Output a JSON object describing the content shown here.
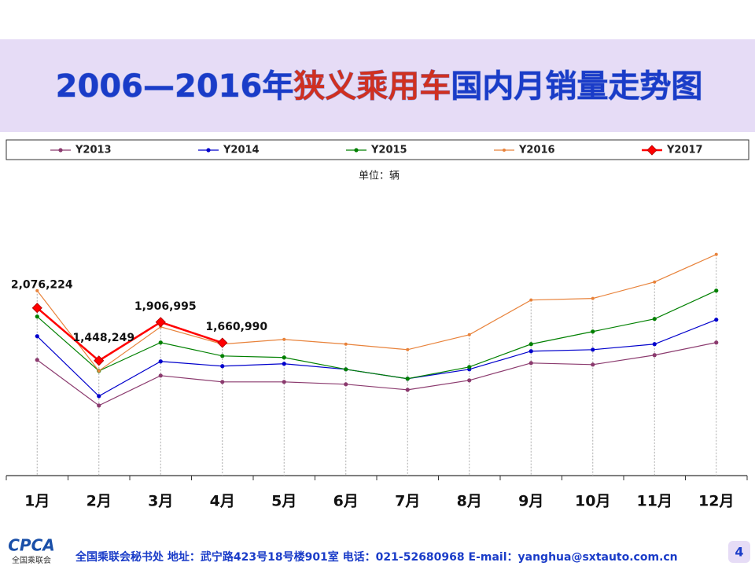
{
  "chart_data": {
    "type": "line",
    "title": [
      "2006—2016年",
      "狭义乘用车",
      "国内月销量走势图"
    ],
    "unit": "单位：辆",
    "categories": [
      "1月",
      "2月",
      "3月",
      "4月",
      "5月",
      "6月",
      "7月",
      "8月",
      "9月",
      "10月",
      "11月",
      "12月"
    ],
    "ylim": [
      0,
      3000000
    ],
    "series": [
      {
        "name": "Y2013",
        "color": "#8b3a6e",
        "values": [
          1457000,
          914000,
          1270000,
          1195000,
          1195000,
          1167000,
          1101000,
          1214000,
          1420000,
          1401000,
          1514000,
          1664000
        ]
      },
      {
        "name": "Y2014",
        "color": "#0000cc",
        "values": [
          1739000,
          1026000,
          1439000,
          1383000,
          1411000,
          1345000,
          1233000,
          1345000,
          1561000,
          1579000,
          1645000,
          1936000
        ]
      },
      {
        "name": "Y2015",
        "color": "#008000",
        "values": [
          1973000,
          1326000,
          1664000,
          1504000,
          1486000,
          1345000,
          1233000,
          1373000,
          1645000,
          1795000,
          1945000,
          2282000
        ]
      },
      {
        "name": "Y2016",
        "color": "#e8823a",
        "values": [
          2282000,
          1326000,
          1851000,
          1645000,
          1701000,
          1645000,
          1579000,
          1757000,
          2170000,
          2189000,
          2385000,
          2713000
        ]
      },
      {
        "name": "Y2017",
        "color": "#ff0000",
        "values": [
          2076224,
          1448249,
          1906995,
          1660990,
          null,
          null,
          null,
          null,
          null,
          null,
          null,
          null
        ],
        "value_labels": [
          "2,076,224",
          "1,448,249",
          "1,906,995",
          "1,660,990",
          null,
          null,
          null,
          null,
          null,
          null,
          null,
          null
        ]
      }
    ]
  },
  "footer": {
    "logo": "CPCA",
    "logo_sub": "全国乘联会",
    "text": "全国乘联会秘书处  地址：武宁路423号18号楼901室    电话：021-52680968  E-mail：yanghua@sxtauto.com.cn",
    "page": "4"
  }
}
